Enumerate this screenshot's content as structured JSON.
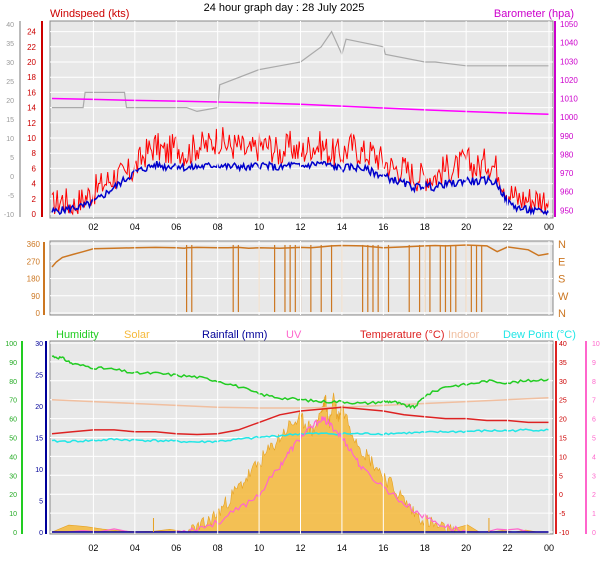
{
  "title": "24 hour graph day : 28 July 2025",
  "time_ticks": [
    "02",
    "04",
    "06",
    "08",
    "10",
    "12",
    "14",
    "16",
    "18",
    "20",
    "22",
    "00"
  ],
  "colors": {
    "wind_gust": "#ff0000",
    "wind_avg": "#0000cc",
    "barometer": "#ff00ff",
    "wind_gray": "#aaaaaa",
    "direction": "#cc7722",
    "humidity": "#22cc22",
    "solar": "#f5b93a",
    "rainfall": "#000099",
    "uv": "#ff66cc",
    "temperature": "#dd2222",
    "indoor": "#f0bfa0",
    "dewpoint": "#22e6e6",
    "plot_bg": "#e8e8e8"
  },
  "chart_data": [
    {
      "type": "line",
      "title": "",
      "y_label_left": "Windspeed (kts)",
      "y_label_right": "Barometer (hpa)",
      "y_ticks_left": [
        "0",
        "2",
        "4",
        "6",
        "8",
        "10",
        "12",
        "14",
        "16",
        "18",
        "20",
        "22",
        "24"
      ],
      "y_ticks_gray": [
        "-10",
        "-5",
        "0",
        "5",
        "10",
        "15",
        "20",
        "25",
        "30",
        "35",
        "40"
      ],
      "y_ticks_right": [
        "950",
        "960",
        "970",
        "980",
        "990",
        "1000",
        "1010",
        "1020",
        "1030",
        "1040",
        "1050"
      ],
      "ylim_left": [
        0,
        25
      ],
      "ylim_right": [
        948,
        1050
      ],
      "x_hours": [
        0,
        24
      ],
      "series": [
        {
          "key": "gust",
          "x": [
            0,
            0.5,
            1,
            1.5,
            2,
            2.5,
            3,
            3.5,
            4,
            4.5,
            5,
            5.5,
            6,
            6.5,
            7,
            7.5,
            8,
            8.5,
            9,
            9.5,
            10,
            10.5,
            11,
            11.5,
            12,
            12.5,
            13,
            13.5,
            14,
            14.5,
            15,
            15.5,
            16,
            16.5,
            17,
            17.5,
            18,
            18.5,
            19,
            19.5,
            20,
            20.5,
            21,
            21.5,
            22,
            22.5,
            23,
            23.5,
            24
          ],
          "y": [
            1,
            2,
            1,
            2,
            3,
            4,
            5,
            5,
            6,
            8,
            9,
            8,
            9,
            8,
            9,
            9,
            10,
            9,
            9,
            8,
            9,
            9,
            8,
            9,
            8,
            9,
            9,
            8,
            8,
            9,
            8,
            8,
            7,
            6,
            6,
            5,
            5,
            5,
            6,
            6,
            7,
            6,
            7,
            6,
            3,
            2,
            2,
            2,
            2
          ]
        },
        {
          "key": "avg",
          "x": [
            0,
            0.5,
            1,
            1.5,
            2,
            2.5,
            3,
            3.5,
            4,
            4.5,
            5,
            5.5,
            6,
            6.5,
            7,
            7.5,
            8,
            8.5,
            9,
            9.5,
            10,
            10.5,
            11,
            11.5,
            12,
            12.5,
            13,
            13.5,
            14,
            14.5,
            15,
            15.5,
            16,
            16.5,
            17,
            17.5,
            18,
            18.5,
            19,
            19.5,
            20,
            20.5,
            21,
            21.5,
            22,
            22.5,
            23,
            23.5,
            24
          ],
          "y": [
            0.3,
            0.5,
            0.8,
            1,
            1.5,
            2.5,
            3.5,
            4.5,
            5.5,
            6,
            6.5,
            6.2,
            6.5,
            6,
            6.2,
            6.3,
            6.5,
            6.2,
            6.3,
            6,
            6.5,
            6.3,
            6,
            6.5,
            6.2,
            6.5,
            6.7,
            6.3,
            6,
            6.2,
            6,
            5.5,
            5,
            4.5,
            4,
            3.5,
            3.8,
            3.5,
            4,
            4,
            4.5,
            4.2,
            4.5,
            4,
            1.5,
            0.8,
            0.5,
            0.3,
            0.2
          ]
        },
        {
          "key": "baro",
          "x": [
            0,
            2,
            4,
            6,
            8,
            10,
            12,
            14,
            16,
            18,
            20,
            22,
            24
          ],
          "y": [
            1010,
            1009.5,
            1009,
            1008.6,
            1008.1,
            1007.6,
            1006.9,
            1005.9,
            1004.9,
            1003.9,
            1003,
            1002.2,
            1001.6
          ]
        },
        {
          "key": "gray",
          "x": [
            0,
            1.5,
            1.6,
            3.5,
            3.6,
            6.5,
            7,
            8,
            8.1,
            10,
            11,
            12,
            12.5,
            13,
            13.5,
            14,
            14.2,
            16,
            16.1,
            18,
            18.5,
            20,
            22,
            24
          ],
          "y": [
            14,
            14,
            16,
            16,
            14,
            14,
            13.5,
            14,
            17,
            19,
            19.5,
            20,
            21,
            22,
            24,
            21,
            23,
            22,
            21,
            20,
            20,
            19.5,
            19.5,
            19.5
          ]
        }
      ]
    },
    {
      "type": "scatter",
      "title": "",
      "y_ticks_left": [
        "0",
        "90",
        "180",
        "270",
        "360"
      ],
      "y_labels_right": [
        "N",
        "W",
        "S",
        "E",
        "N"
      ],
      "ylim": [
        0,
        360
      ],
      "series": [
        {
          "key": "direction",
          "x": [
            0,
            0.2,
            0.5,
            1,
            1.5,
            2,
            3,
            4,
            5,
            6,
            6.4,
            6.5,
            7,
            8,
            8.5,
            9,
            9.5,
            10,
            11,
            12,
            12.5,
            13,
            13.5,
            14,
            15,
            16,
            17,
            18,
            18.5,
            19,
            20,
            21,
            21.5,
            22,
            23,
            23.5,
            24
          ],
          "y": [
            240,
            265,
            290,
            305,
            320,
            335,
            338,
            340,
            342,
            340,
            338,
            340,
            342,
            340,
            340,
            342,
            338,
            340,
            338,
            342,
            340,
            345,
            350,
            352,
            350,
            340,
            345,
            350,
            352,
            350,
            355,
            350,
            320,
            345,
            330,
            300,
            310
          ]
        }
      ]
    },
    {
      "type": "line",
      "title": "",
      "legend": [
        "Humidity",
        "Solar",
        "Rainfall (mm)",
        "UV",
        "Temperature (°C)",
        "Indoor",
        "Dew Point (°C)"
      ],
      "y_ticks_humidity": [
        "0",
        "10",
        "20",
        "30",
        "40",
        "50",
        "60",
        "70",
        "80",
        "90",
        "100"
      ],
      "y_ticks_rain": [
        "0",
        "5",
        "10",
        "15",
        "20",
        "25",
        "30"
      ],
      "y_ticks_temp": [
        "-10",
        "-5",
        "0",
        "5",
        "10",
        "15",
        "20",
        "25",
        "30",
        "35",
        "40"
      ],
      "y_ticks_uv": [
        "0",
        "1",
        "2",
        "3",
        "4",
        "5",
        "6",
        "7",
        "8",
        "9",
        "10"
      ],
      "series": [
        {
          "key": "humidity",
          "x": [
            0,
            0.5,
            1,
            2,
            3,
            4,
            5,
            6,
            7,
            8,
            9,
            10,
            11,
            12,
            13,
            14,
            15,
            16,
            16.5,
            17,
            17.5,
            18,
            19,
            20,
            21,
            22,
            23,
            24
          ],
          "y": [
            93,
            92,
            89,
            87,
            86,
            84,
            84,
            83,
            82,
            80,
            77,
            73,
            71,
            70,
            69,
            69,
            68,
            69,
            69,
            67,
            66,
            72,
            77,
            78,
            80,
            79,
            80,
            81
          ]
        },
        {
          "key": "temperature",
          "x": [
            0,
            1,
            2,
            3,
            4,
            5,
            6,
            7,
            8,
            9,
            10,
            11,
            12,
            13,
            14,
            15,
            16,
            17,
            18,
            19,
            20,
            21,
            22,
            23,
            24
          ],
          "y": [
            16,
            16.5,
            17,
            17,
            16.5,
            16.5,
            16,
            15.8,
            16,
            17,
            19,
            21,
            22,
            22.5,
            23,
            22.5,
            22,
            21,
            20.5,
            20,
            20,
            19.5,
            19.5,
            19,
            19
          ]
        },
        {
          "key": "dewpoint",
          "x": [
            0,
            1,
            2,
            3,
            4,
            5,
            6,
            7,
            8,
            9,
            10,
            11,
            12,
            13,
            14,
            15,
            16,
            17,
            18,
            19,
            20,
            21,
            22,
            23,
            24
          ],
          "y": [
            14,
            14,
            14.2,
            14.5,
            14.3,
            14.2,
            14,
            13.8,
            14,
            14.5,
            15,
            15.5,
            16,
            16,
            16,
            16,
            16,
            16.2,
            16.3,
            16.5,
            16.6,
            16.8,
            16.8,
            17,
            17
          ]
        },
        {
          "key": "indoor",
          "x": [
            0,
            2,
            4,
            6,
            8,
            10,
            12,
            14,
            16,
            18,
            20,
            22,
            24
          ],
          "y": [
            25,
            24.5,
            24,
            23.5,
            23,
            22.8,
            22.8,
            23,
            23.5,
            24,
            24.5,
            25,
            25.5
          ]
        },
        {
          "key": "uv",
          "x": [
            0,
            6,
            7,
            8,
            9,
            10,
            11,
            11.5,
            12,
            12.5,
            13,
            13.3,
            13.6,
            14,
            14.5,
            15,
            16,
            17,
            18,
            19,
            20,
            24
          ],
          "y": [
            0,
            0,
            0.2,
            0.5,
            1.2,
            2,
            3.5,
            4.3,
            5,
            5.5,
            6,
            5.8,
            5.5,
            5,
            4.2,
            3.3,
            2.4,
            1.5,
            0.8,
            0.3,
            0,
            0
          ]
        },
        {
          "key": "solar",
          "x": [
            0,
            6.5,
            7,
            7.5,
            8,
            8.5,
            9,
            9.5,
            10,
            10.5,
            11,
            11.5,
            12,
            12.3,
            12.6,
            13,
            13.2,
            13.4,
            13.6,
            13.8,
            14,
            14.5,
            15,
            15.5,
            16,
            16.5,
            17,
            17.5,
            18,
            18.5,
            19,
            19.5,
            24
          ],
          "y": [
            0,
            0,
            0.5,
            1.5,
            3,
            5,
            7,
            9,
            11,
            13,
            15,
            17,
            18,
            17,
            16,
            19,
            21,
            17,
            22,
            18,
            20,
            16,
            13,
            11,
            9,
            7,
            5,
            3,
            2,
            1,
            0.3,
            0,
            0
          ]
        },
        {
          "key": "rainfall",
          "x": [
            0,
            24
          ],
          "y": [
            0,
            0
          ]
        }
      ]
    }
  ]
}
